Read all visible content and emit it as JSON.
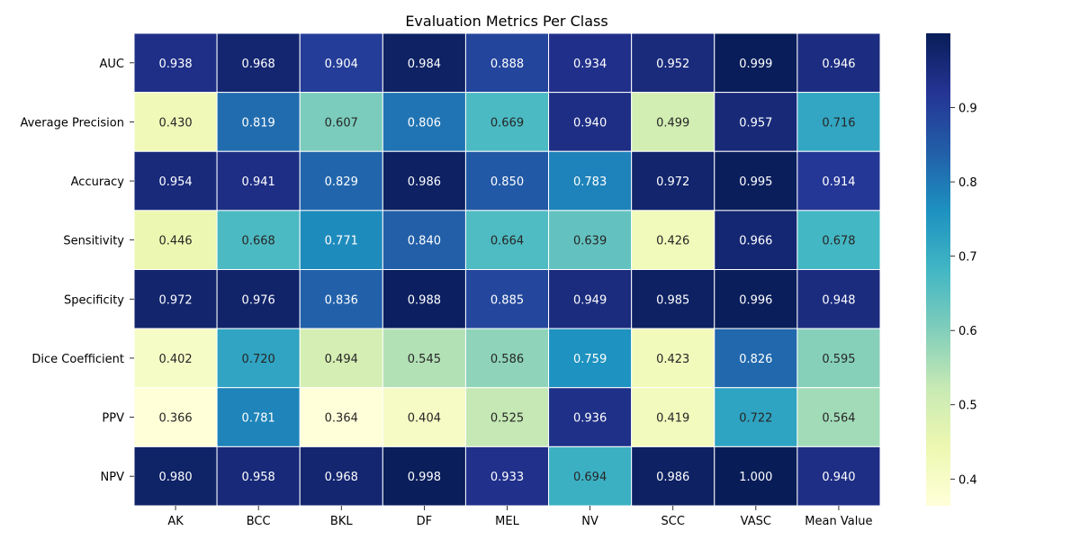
{
  "chart_data": {
    "type": "heatmap",
    "title": "Evaluation Metrics Per Class",
    "columns": [
      "AK",
      "BCC",
      "BKL",
      "DF",
      "MEL",
      "NV",
      "SCC",
      "VASC",
      "Mean Value"
    ],
    "rows": [
      "AUC",
      "Average Precision",
      "Accuracy",
      "Sensitivity",
      "Specificity",
      "Dice Coefficient",
      "PPV",
      "NPV"
    ],
    "values": [
      [
        0.938,
        0.968,
        0.904,
        0.984,
        0.888,
        0.934,
        0.952,
        0.999,
        0.946
      ],
      [
        0.43,
        0.819,
        0.607,
        0.806,
        0.669,
        0.94,
        0.499,
        0.957,
        0.716
      ],
      [
        0.954,
        0.941,
        0.829,
        0.986,
        0.85,
        0.783,
        0.972,
        0.995,
        0.914
      ],
      [
        0.446,
        0.668,
        0.771,
        0.84,
        0.664,
        0.639,
        0.426,
        0.966,
        0.678
      ],
      [
        0.972,
        0.976,
        0.836,
        0.988,
        0.885,
        0.949,
        0.985,
        0.996,
        0.948
      ],
      [
        0.402,
        0.72,
        0.494,
        0.545,
        0.586,
        0.759,
        0.423,
        0.826,
        0.595
      ],
      [
        0.366,
        0.781,
        0.364,
        0.404,
        0.525,
        0.936,
        0.419,
        0.722,
        0.564
      ],
      [
        0.98,
        0.958,
        0.968,
        0.998,
        0.933,
        0.694,
        0.986,
        1.0,
        0.94
      ]
    ],
    "value_labels": [
      [
        "0.938",
        "0.968",
        "0.904",
        "0.984",
        "0.888",
        "0.934",
        "0.952",
        "0.999",
        "0.946"
      ],
      [
        "0.430",
        "0.819",
        "0.607",
        "0.806",
        "0.669",
        "0.940",
        "0.499",
        "0.957",
        "0.716"
      ],
      [
        "0.954",
        "0.941",
        "0.829",
        "0.986",
        "0.850",
        "0.783",
        "0.972",
        "0.995",
        "0.914"
      ],
      [
        "0.446",
        "0.668",
        "0.771",
        "0.840",
        "0.664",
        "0.639",
        "0.426",
        "0.966",
        "0.678"
      ],
      [
        "0.972",
        "0.976",
        "0.836",
        "0.988",
        "0.885",
        "0.949",
        "0.985",
        "0.996",
        "0.948"
      ],
      [
        "0.402",
        "0.720",
        "0.494",
        "0.545",
        "0.586",
        "0.759",
        "0.423",
        "0.826",
        "0.595"
      ],
      [
        "0.366",
        "0.781",
        "0.364",
        "0.404",
        "0.525",
        "0.936",
        "0.419",
        "0.722",
        "0.564"
      ],
      [
        "0.980",
        "0.958",
        "0.968",
        "0.998",
        "0.933",
        "0.694",
        "0.986",
        "1.000",
        "0.940"
      ]
    ],
    "colormap": "YlGnBu",
    "vmin": 0.364,
    "vmax": 1.0,
    "colorbar_ticks": [
      "0.4",
      "0.5",
      "0.6",
      "0.7",
      "0.8",
      "0.9"
    ],
    "colorbar_placement": "right",
    "grid": false,
    "cell_border_color": "#ffffff"
  }
}
